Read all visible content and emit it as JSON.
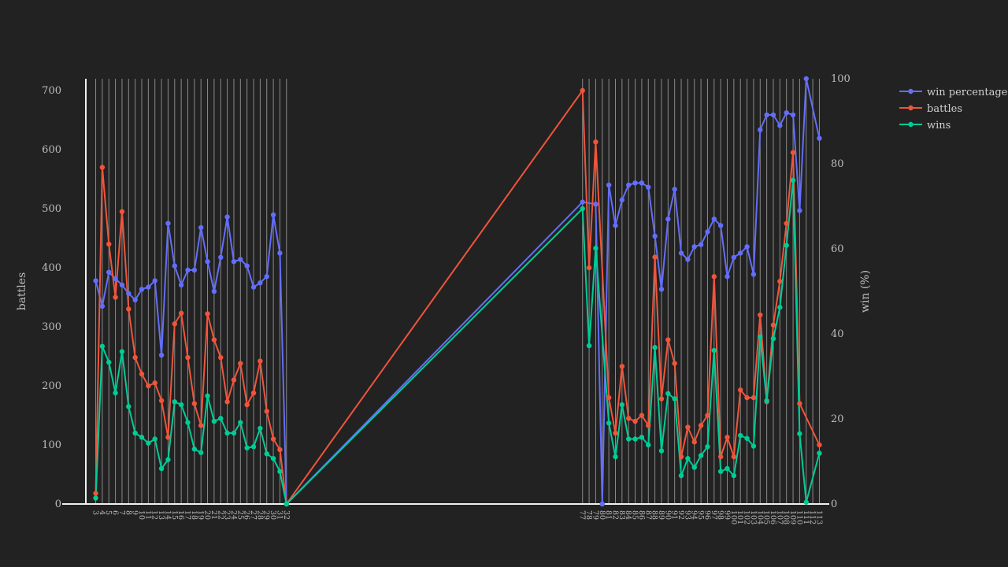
{
  "chart_data": {
    "type": "line",
    "ylabel": "battles",
    "y2label": "win (%)",
    "ylim": [
      0,
      720
    ],
    "y2lim": [
      0,
      100
    ],
    "yticks": [
      0,
      100,
      200,
      300,
      400,
      500,
      600,
      700
    ],
    "y2ticks": [
      0,
      20,
      40,
      60,
      80,
      100
    ],
    "legend_position": "top-right",
    "grid": "vertical",
    "x": [
      3,
      4,
      5,
      6,
      7,
      8,
      9,
      10,
      11,
      12,
      13,
      14,
      15,
      16,
      17,
      18,
      19,
      20,
      21,
      22,
      23,
      24,
      25,
      26,
      27,
      28,
      29,
      30,
      31,
      32,
      77,
      78,
      79,
      80,
      81,
      82,
      83,
      84,
      85,
      86,
      87,
      88,
      89,
      90,
      91,
      92,
      93,
      94,
      95,
      96,
      97,
      98,
      99,
      100,
      101,
      102,
      103,
      104,
      105,
      106,
      107,
      108,
      109,
      110,
      111,
      112,
      113
    ],
    "series": [
      {
        "name": "win percentage",
        "axis": "right",
        "color": "#636efa",
        "values": [
          52.5,
          46.5,
          54.5,
          53,
          51.5,
          49.5,
          48,
          50.5,
          51,
          52.5,
          35,
          66,
          56,
          51.5,
          55,
          55,
          65,
          57,
          50,
          58,
          67.5,
          57,
          57.5,
          56,
          51,
          52,
          53.5,
          68,
          59,
          0,
          71,
          null,
          70.5,
          0,
          75,
          65.5,
          71.5,
          75,
          75.5,
          75.5,
          74.5,
          63,
          50.5,
          67,
          74,
          59,
          57.5,
          60.5,
          61,
          64,
          67,
          65.5,
          53.5,
          58,
          59,
          60.5,
          54,
          88,
          91.5,
          91.5,
          89,
          92,
          91.5,
          69,
          100,
          null,
          86
        ]
      },
      {
        "name": "battles",
        "axis": "left",
        "color": "#ef553b",
        "values": [
          18,
          570,
          440,
          350,
          495,
          330,
          248,
          220,
          200,
          205,
          175,
          113,
          305,
          323,
          248,
          170,
          133,
          322,
          278,
          248,
          173,
          210,
          238,
          168,
          188,
          242,
          157,
          110,
          92,
          0,
          700,
          400,
          613,
          null,
          180,
          120,
          233,
          145,
          140,
          150,
          133,
          418,
          178,
          278,
          238,
          80,
          130,
          105,
          133,
          150,
          385,
          80,
          113,
          80,
          193,
          180,
          180,
          320,
          173,
          303,
          377,
          475,
          595,
          170,
          null,
          null,
          100
        ]
      },
      {
        "name": "wins",
        "axis": "left",
        "color": "#00cc96",
        "values": [
          10,
          267,
          240,
          188,
          258,
          165,
          120,
          113,
          103,
          110,
          60,
          75,
          173,
          168,
          138,
          93,
          87,
          183,
          140,
          145,
          120,
          120,
          138,
          95,
          97,
          128,
          85,
          77,
          55,
          0,
          500,
          268,
          433,
          null,
          137,
          80,
          168,
          110,
          110,
          113,
          100,
          265,
          90,
          187,
          178,
          48,
          77,
          62,
          82,
          97,
          260,
          55,
          60,
          48,
          116,
          111,
          98,
          283,
          175,
          280,
          333,
          438,
          548,
          119,
          3,
          null,
          86
        ]
      }
    ]
  },
  "legend": {
    "items": [
      "win percentage",
      "battles",
      "wins"
    ]
  }
}
